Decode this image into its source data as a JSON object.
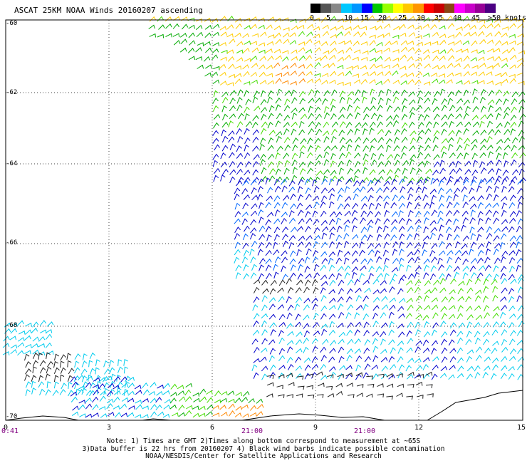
{
  "title": "ASCAT 25KM NOAA Winds 20160207 ascending",
  "colorbar": {
    "colors": [
      "#000000",
      "#555555",
      "#888888",
      "#00c8ff",
      "#0096ff",
      "#0000ff",
      "#00c800",
      "#96ff00",
      "#ffff00",
      "#ffc800",
      "#ff9600",
      "#ff0000",
      "#c80000",
      "#8b4513",
      "#ff00ff",
      "#c800c8",
      "#960096",
      "#4b0082"
    ],
    "labels": [
      "0",
      "5",
      "10",
      "15",
      "20",
      "25",
      "30",
      "35",
      "40",
      "45",
      ">50 knots"
    ]
  },
  "axes": {
    "y_ticks": [
      "-60",
      "-62",
      "-64",
      "-66",
      "-68",
      "-70"
    ],
    "x_ticks": [
      "0",
      "3",
      "6",
      "9",
      "12",
      "15"
    ],
    "time_labels": [
      "0:41",
      "21:00",
      "21:00"
    ]
  },
  "legend_colors": {
    "calm": "#222222",
    "light": "#00ccee",
    "moderate": "#0000cc",
    "fresh": "#00aa00",
    "strong_light": "#44dd00",
    "strong": "#ffcc00",
    "gale": "#ff8800"
  },
  "notes": [
    "Note: 1) Times are GMT 2)Times along bottom correspond to measurement at ~65S",
    "3)Data buffer is 22 hrs from 20160207 4) Black wind barbs indicate possible contamination",
    "NOAA/NESDIS/Center for Satellite Applications and Research"
  ]
}
